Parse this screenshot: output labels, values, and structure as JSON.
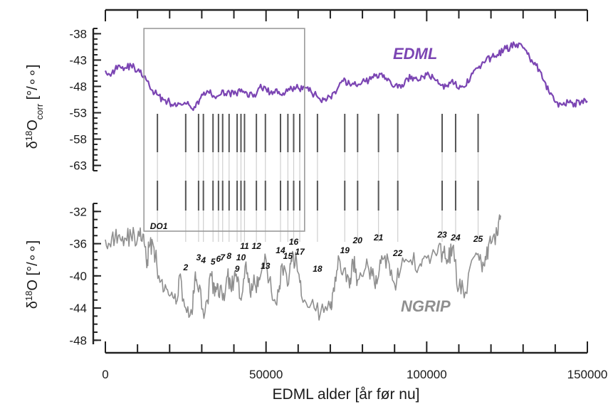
{
  "chart_data": {
    "type": "line",
    "xlabel": "EDML alder [år før nu]",
    "x_ticks": [
      "0",
      "50000",
      "100000",
      "150000"
    ],
    "xlim": [
      0,
      150000
    ],
    "colors": {
      "EDML": "#7b45b3",
      "NGRIP": "#8f8f8f",
      "connector": "#cfcfcf",
      "box": "#9a9a9a"
    },
    "zoom_box": {
      "x_range": [
        12000,
        62000
      ],
      "shown": true
    },
    "panels": [
      {
        "name": "EDML",
        "series_label": "EDML",
        "ylabel": {
          "main": "δ",
          "sup": "18",
          "mid": "O",
          "sub": "corr",
          "unit": " [°/∘∘]"
        },
        "y_ticks": [
          "-38",
          "-43",
          "-48",
          "-53",
          "-58",
          "-63"
        ],
        "ylim": [
          -64,
          -37
        ],
        "series": [
          {
            "name": "EDML",
            "x": [
              0,
              2000,
              4000,
              6000,
              8000,
              10000,
              12000,
              14000,
              16000,
              18000,
              20000,
              22000,
              24000,
              26000,
              28000,
              30000,
              32000,
              34000,
              36000,
              38000,
              40000,
              42000,
              44000,
              46000,
              48000,
              50000,
              52000,
              54000,
              56000,
              58000,
              60000,
              62000,
              64000,
              66000,
              68000,
              70000,
              72000,
              74000,
              76000,
              78000,
              80000,
              82000,
              84000,
              86000,
              88000,
              90000,
              92000,
              94000,
              96000,
              98000,
              100000,
              102000,
              104000,
              106000,
              108000,
              110000,
              112000,
              114000,
              116000,
              118000,
              120000,
              122000,
              124000,
              126000,
              128000,
              130000,
              132000,
              134000,
              136000,
              138000,
              140000,
              142000,
              144000,
              146000,
              148000,
              150000
            ],
            "y": [
              -45.0,
              -45.5,
              -44.0,
              -44.5,
              -44.0,
              -45.0,
              -46.0,
              -48.5,
              -49.5,
              -50.5,
              -51.0,
              -51.8,
              -51.5,
              -51.5,
              -52.0,
              -49.5,
              -49.0,
              -50.0,
              -49.5,
              -49.0,
              -49.5,
              -49.0,
              -49.2,
              -50.0,
              -48.2,
              -48.5,
              -49.5,
              -49.0,
              -49.2,
              -48.5,
              -48.3,
              -48.2,
              -49.0,
              -50.0,
              -50.5,
              -50.0,
              -48.8,
              -47.0,
              -47.5,
              -47.8,
              -47.0,
              -46.8,
              -46.0,
              -45.5,
              -46.5,
              -48.0,
              -48.3,
              -46.5,
              -46.3,
              -46.8,
              -45.8,
              -46.3,
              -47.5,
              -48.0,
              -46.7,
              -48.5,
              -48.0,
              -45.5,
              -44.5,
              -43.5,
              -42.5,
              -42.0,
              -41.0,
              -40.5,
              -40.0,
              -40.7,
              -42.5,
              -44.0,
              -46.5,
              -49.0,
              -51.0,
              -51.5,
              -51.0,
              -51.2,
              -51.0,
              -50.8
            ]
          }
        ]
      },
      {
        "name": "NGRIP",
        "series_label": "NGRIP",
        "ylabel": {
          "main": "δ",
          "sup": "18",
          "mid": "O",
          "sub": "",
          "unit": "  [°/∘∘]"
        },
        "y_ticks": [
          "-32",
          "-36",
          "-40",
          "-44",
          "-48"
        ],
        "ylim": [
          -48.5,
          -31
        ],
        "series": [
          {
            "name": "NGRIP",
            "x": [
              0,
              2000,
              4000,
              6000,
              8000,
              10000,
              11700,
              12900,
              13500,
              14700,
              16000,
              18000,
              20000,
              22000,
              23000,
              25000,
              27000,
              28000,
              29000,
              31000,
              33000,
              34000,
              35000,
              36500,
              38000,
              39000,
              40500,
              42000,
              43500,
              45000,
              46500,
              48000,
              50000,
              52000,
              54000,
              55000,
              57000,
              58000,
              59500,
              61000,
              64000,
              67000,
              70000,
              71000,
              72500,
              74000,
              76000,
              77000,
              78500,
              81000,
              83000,
              84500,
              86000,
              88000,
              90000,
              92000,
              95000,
              98000,
              100000,
              103000,
              105000,
              106500,
              108000,
              110000,
              112000,
              115000,
              117000,
              118500,
              120000,
              122000,
              123000
            ],
            "y": [
              -35.5,
              -35.2,
              -35.0,
              -35.3,
              -35.0,
              -35.4,
              -34.8,
              -39.0,
              -36.5,
              -35.8,
              -38.5,
              -42.0,
              -42.5,
              -43.5,
              -40.0,
              -44.0,
              -44.8,
              -39.5,
              -42.0,
              -44.5,
              -40.0,
              -42.5,
              -41.0,
              -43.0,
              -40.0,
              -41.5,
              -40.0,
              -42.8,
              -38.8,
              -42.0,
              -41.0,
              -40.5,
              -38.0,
              -43.0,
              -42.0,
              -38.5,
              -41.0,
              -38.2,
              -38.0,
              -42.5,
              -43.5,
              -44.5,
              -44.0,
              -41.5,
              -37.5,
              -39.5,
              -41.5,
              -38.0,
              -40.5,
              -39.0,
              -40.0,
              -41.0,
              -37.5,
              -38.0,
              -41.0,
              -39.0,
              -38.0,
              -38.5,
              -37.8,
              -37.5,
              -37.0,
              -38.0,
              -36.5,
              -41.5,
              -42.0,
              -37.5,
              -38.5,
              -38.0,
              -36.0,
              -35.0,
              -32.5
            ]
          }
        ]
      }
    ],
    "event_lines": [
      {
        "label": "DO1",
        "x": 16200,
        "x_bottom": 16200
      },
      {
        "label": "2",
        "x": 25000,
        "x_bottom": 25000
      },
      {
        "label": "3",
        "x": 29000,
        "x_bottom": 29000
      },
      {
        "label": "4",
        "x": 30500,
        "x_bottom": 30500
      },
      {
        "label": "5",
        "x": 33500,
        "x_bottom": 33500
      },
      {
        "label": "6",
        "x": 35200,
        "x_bottom": 35200
      },
      {
        "label": "7",
        "x": 36500,
        "x_bottom": 36500
      },
      {
        "label": "8",
        "x": 38500,
        "x_bottom": 38500
      },
      {
        "label": "9",
        "x": 41000,
        "x_bottom": 41000
      },
      {
        "label": "10",
        "x": 42200,
        "x_bottom": 42200
      },
      {
        "label": "11",
        "x": 43300,
        "x_bottom": 43300
      },
      {
        "label": "12",
        "x": 47000,
        "x_bottom": 47000
      },
      {
        "label": "13",
        "x": 49800,
        "x_bottom": 49800
      },
      {
        "label": "14",
        "x": 54500,
        "x_bottom": 54500
      },
      {
        "label": "15",
        "x": 56800,
        "x_bottom": 56800
      },
      {
        "label": "16",
        "x": 58600,
        "x_bottom": 58600
      },
      {
        "label": "17",
        "x": 60500,
        "x_bottom": 60500
      },
      {
        "label": "18",
        "x": 66000,
        "x_bottom": 66000
      },
      {
        "label": "19",
        "x": 74500,
        "x_bottom": 74500
      },
      {
        "label": "20",
        "x": 78500,
        "x_bottom": 78500
      },
      {
        "label": "21",
        "x": 85000,
        "x_bottom": 85000
      },
      {
        "label": "22",
        "x": 91000,
        "x_bottom": 91000
      },
      {
        "label": "23",
        "x": 104800,
        "x_bottom": 104800
      },
      {
        "label": "24",
        "x": 109000,
        "x_bottom": 109000
      },
      {
        "label": "25",
        "x": 116000,
        "x_bottom": 116000
      }
    ]
  }
}
